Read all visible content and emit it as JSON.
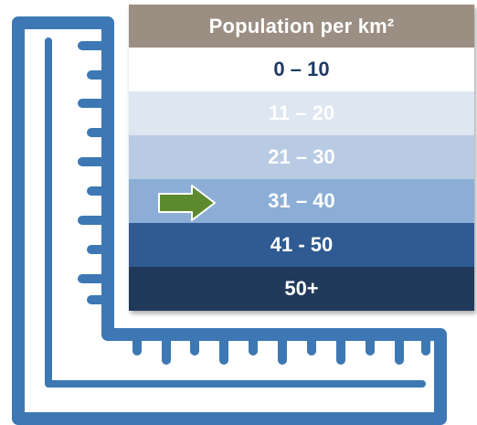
{
  "legend": {
    "header": "Population per km²",
    "header_bg": "#9b8e82",
    "rows": [
      {
        "label": "0 – 10",
        "bg": "#ffffff",
        "color": "#1f3b64"
      },
      {
        "label": "11 – 20",
        "bg": "#dde6f1",
        "color": "#ffffff"
      },
      {
        "label": "21 – 30",
        "bg": "#b8cbe3",
        "color": "#ffffff"
      },
      {
        "label": "31 – 40",
        "bg": "#8caed6",
        "color": "#ffffff"
      },
      {
        "label": "41 - 50",
        "bg": "#2f5a92",
        "color": "#ffffff"
      },
      {
        "label": "50+",
        "bg": "#213a5c",
        "color": "#ffffff"
      }
    ],
    "highlighted_row": 3
  },
  "ruler": {
    "color": "#3d78b4",
    "icon": "l-shaped-ruler-icon"
  },
  "arrow": {
    "color": "#5e8a2f",
    "icon": "right-arrow-icon"
  }
}
